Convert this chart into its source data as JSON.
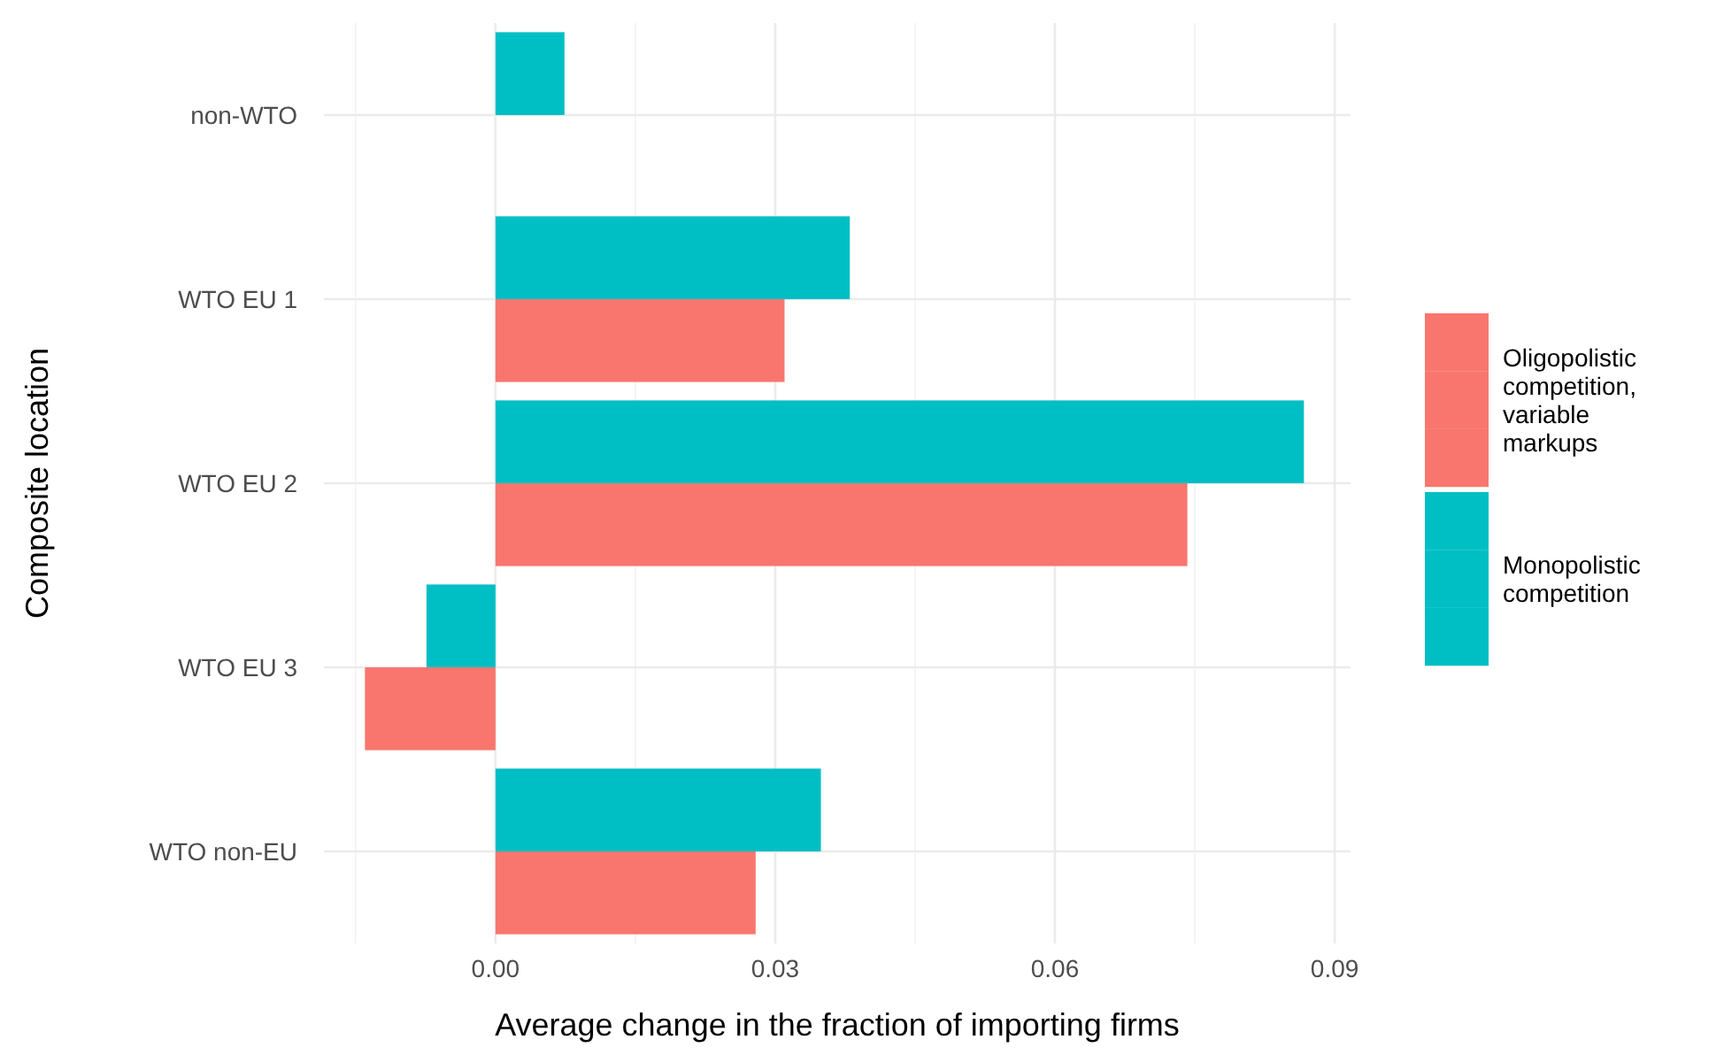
{
  "chart_data": {
    "type": "bar",
    "orientation": "horizontal",
    "xlabel": "Average change in the fraction of importing firms",
    "ylabel": "Composite location",
    "categories": [
      "non-WTO",
      "WTO EU 1",
      "WTO EU 2",
      "WTO EU 3",
      "WTO non-EU"
    ],
    "series": [
      {
        "name": "Oligopolistic competition, variable markups",
        "color": "#f8766d",
        "values": [
          null,
          0.031,
          0.0742,
          -0.014,
          0.0279
        ]
      },
      {
        "name": "Monopolistic competition",
        "color": "#00bfc4",
        "values": [
          0.0074,
          0.038,
          0.0867,
          -0.0074,
          0.0349
        ]
      }
    ],
    "xlim": [
      -0.0184,
      0.0917
    ],
    "xticks": [
      {
        "value": 0,
        "label": "0.00"
      },
      0.03,
      0.06,
      0.09
    ],
    "grid": true,
    "legend": "right"
  }
}
